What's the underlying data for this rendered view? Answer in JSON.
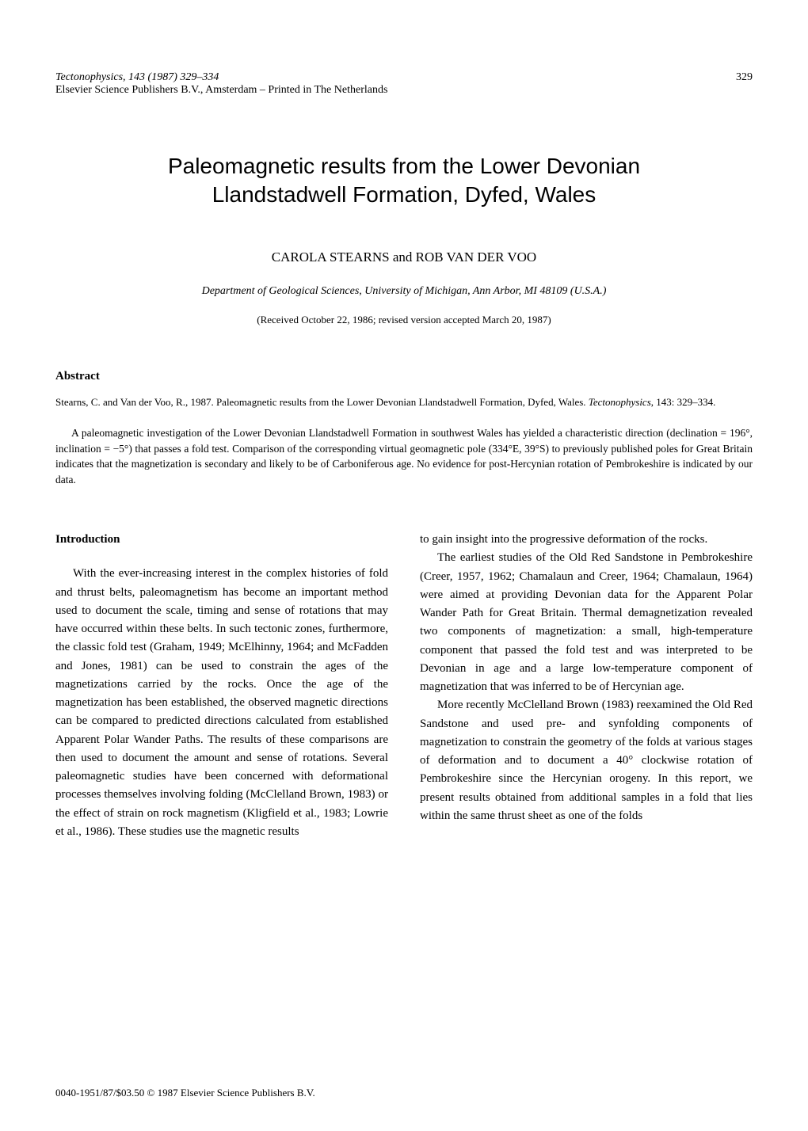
{
  "header": {
    "line1": "Tectonophysics, 143 (1987) 329–334",
    "line2": "Elsevier Science Publishers B.V., Amsterdam – Printed in The Netherlands",
    "pageNumber": "329"
  },
  "title": {
    "line1": "Paleomagnetic results from the Lower Devonian",
    "line2": "Llandstadwell Formation, Dyfed, Wales"
  },
  "authors": "CAROLA STEARNS and ROB VAN DER VOO",
  "affiliation": "Department of Geological Sciences, University of Michigan, Ann Arbor, MI 48109 (U.S.A.)",
  "received": "(Received October 22, 1986; revised version accepted March 20, 1987)",
  "abstract": {
    "heading": "Abstract",
    "citation_prefix": "Stearns, C. and Van der Voo, R., 1987. Paleomagnetic results from the Lower Devonian Llandstadwell Formation, Dyfed, Wales. ",
    "citation_journal": "Tectonophysics",
    "citation_suffix": ", 143: 329–334.",
    "body": "A paleomagnetic investigation of the Lower Devonian Llandstadwell Formation in southwest Wales has yielded a characteristic direction (declination = 196°, inclination = −5°) that passes a fold test. Comparison of the corresponding virtual geomagnetic pole (334°E, 39°S) to previously published poles for Great Britain indicates that the magnetization is secondary and likely to be of Carboniferous age. No evidence for post-Hercynian rotation of Pembrokeshire is indicated by our data."
  },
  "introduction": {
    "heading": "Introduction",
    "col1_para1": "With the ever-increasing interest in the complex histories of fold and thrust belts, paleomagnetism has become an important method used to document the scale, timing and sense of rotations that may have occurred within these belts. In such tectonic zones, furthermore, the classic fold test (Graham, 1949; McElhinny, 1964; and McFadden and Jones, 1981) can be used to constrain the ages of the magnetizations carried by the rocks. Once the age of the magnetization has been established, the observed magnetic directions can be compared to predicted directions calculated from established Apparent Polar Wander Paths. The results of these comparisons are then used to document the amount and sense of rotations. Several paleomagnetic studies have been concerned with deformational processes themselves involving folding (McClelland Brown, 1983) or the effect of strain on rock magnetism (Kligfield et al., 1983; Lowrie et al., 1986). These studies use the magnetic results",
    "col2_para1": "to gain insight into the progressive deformation of the rocks.",
    "col2_para2": "The earliest studies of the Old Red Sandstone in Pembrokeshire (Creer, 1957, 1962; Chamalaun and Creer, 1964; Chamalaun, 1964) were aimed at providing Devonian data for the Apparent Polar Wander Path for Great Britain. Thermal demagnetization revealed two components of magnetization: a small, high-temperature component that passed the fold test and was interpreted to be Devonian in age and a large low-temperature component of magnetization that was inferred to be of Hercynian age.",
    "col2_para3": "More recently McClelland Brown (1983) reexamined the Old Red Sandstone and used pre- and synfolding components of magnetization to constrain the geometry of the folds at various stages of deformation and to document a 40° clockwise rotation of Pembrokeshire since the Hercynian orogeny. In this report, we present results obtained from additional samples in a fold that lies within the same thrust sheet as one of the folds"
  },
  "footer": "0040-1951/87/$03.50     © 1987 Elsevier Science Publishers B.V."
}
